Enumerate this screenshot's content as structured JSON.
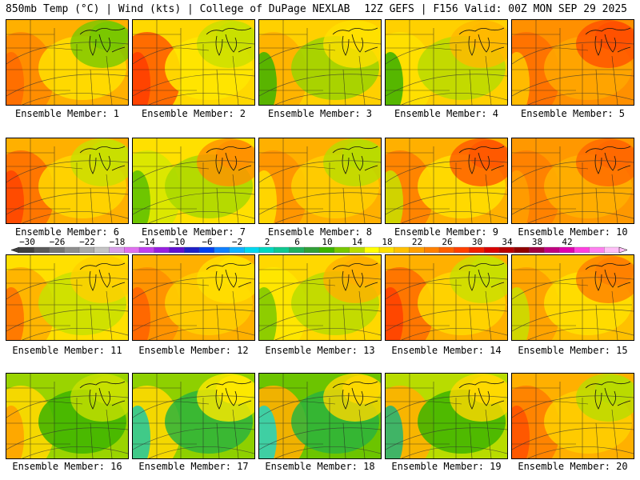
{
  "header": {
    "left_title": "850mb Temp (°C) | Wind (kts) | College of DuPage NEXLAB",
    "right_title": "12Z GEFS | F156 Valid: 00Z MON SEP 29 2025"
  },
  "members": [
    {
      "label": "Ensemble Member: 1",
      "palette": [
        "#ffb000",
        "#ff8a00",
        "#ffe000",
        "#ff6a00",
        "#78c800"
      ]
    },
    {
      "label": "Ensemble Member: 2",
      "palette": [
        "#ffd800",
        "#ff6000",
        "#ffe800",
        "#ff3c00",
        "#c8e000"
      ]
    },
    {
      "label": "Ensemble Member: 3",
      "palette": [
        "#ffd000",
        "#ffb000",
        "#9ad400",
        "#3cb400",
        "#ffe000"
      ]
    },
    {
      "label": "Ensemble Member: 4",
      "palette": [
        "#ffd000",
        "#ffe000",
        "#b8dc00",
        "#38b000",
        "#ffb800"
      ]
    },
    {
      "label": "Ensemble Member: 5",
      "palette": [
        "#ff9000",
        "#ff7000",
        "#ffa800",
        "#ffc800",
        "#ff5000"
      ]
    },
    {
      "label": "Ensemble Member: 6",
      "palette": [
        "#ffb000",
        "#ff7000",
        "#ffd800",
        "#ff4400",
        "#c8e000"
      ]
    },
    {
      "label": "Ensemble Member: 7",
      "palette": [
        "#ffe000",
        "#d8e800",
        "#a8d800",
        "#5ac000",
        "#ff9000"
      ]
    },
    {
      "label": "Ensemble Member: 8",
      "palette": [
        "#ffb000",
        "#ff9400",
        "#ffd000",
        "#ffe000",
        "#b8dc00"
      ]
    },
    {
      "label": "Ensemble Member: 9",
      "palette": [
        "#ffb000",
        "#ff8000",
        "#ffe000",
        "#c8e000",
        "#ff5800"
      ]
    },
    {
      "label": "Ensemble Member: 10",
      "palette": [
        "#ff9800",
        "#ff8000",
        "#ffb000",
        "#ffa000",
        "#ff6800"
      ]
    },
    {
      "label": "Ensemble Member: 11",
      "palette": [
        "#ffe000",
        "#ffb000",
        "#c8e000",
        "#ff7000",
        "#ffd000"
      ]
    },
    {
      "label": "Ensemble Member: 12",
      "palette": [
        "#ffb000",
        "#ff9000",
        "#ffd000",
        "#ff6000",
        "#ffe000"
      ]
    },
    {
      "label": "Ensemble Member: 13",
      "palette": [
        "#ffd800",
        "#ffe800",
        "#b8dc00",
        "#7ac800",
        "#ffb000"
      ]
    },
    {
      "label": "Ensemble Member: 14",
      "palette": [
        "#ffb000",
        "#ff7000",
        "#ffd800",
        "#ff4000",
        "#c8e000"
      ]
    },
    {
      "label": "Ensemble Member: 15",
      "palette": [
        "#ffc000",
        "#ffa000",
        "#ffe000",
        "#c8e000",
        "#ff8000"
      ]
    },
    {
      "label": "Ensemble Member: 16",
      "palette": [
        "#9ad400",
        "#ffd800",
        "#3cb400",
        "#ffa000",
        "#c8e000"
      ]
    },
    {
      "label": "Ensemble Member: 17",
      "palette": [
        "#8ed000",
        "#ffd800",
        "#2cb43c",
        "#20c8a0",
        "#ffe800"
      ]
    },
    {
      "label": "Ensemble Member: 18",
      "palette": [
        "#6cc400",
        "#ffb000",
        "#2cb43c",
        "#20d4c0",
        "#ffd800"
      ]
    },
    {
      "label": "Ensemble Member: 19",
      "palette": [
        "#b8dc00",
        "#ffb000",
        "#3cb400",
        "#20b478",
        "#ffd800"
      ]
    },
    {
      "label": "Ensemble Member: 20",
      "palette": [
        "#ffb000",
        "#ff8000",
        "#ffd000",
        "#ff5000",
        "#b8dc00"
      ]
    }
  ],
  "colorbar": {
    "labels": [
      "-30",
      "-26",
      "-22",
      "-18",
      "-14",
      "-10",
      "-6",
      "-2",
      "2",
      "6",
      "10",
      "14",
      "18",
      "22",
      "26",
      "30",
      "34",
      "38",
      "42"
    ],
    "colors": [
      "#404040",
      "#5a5a5a",
      "#747474",
      "#8e8e8e",
      "#a8a8a8",
      "#c4c4c4",
      "#d8a0e8",
      "#e070f0",
      "#c040f0",
      "#9820e0",
      "#6010d0",
      "#2020c8",
      "#0040f0",
      "#1080ff",
      "#10b0ff",
      "#00d8f0",
      "#00d8c0",
      "#10c890",
      "#20b060",
      "#30a038",
      "#3cb400",
      "#78c800",
      "#b8dc00",
      "#ffff00",
      "#ffe000",
      "#ffc000",
      "#ffa000",
      "#ff8000",
      "#ff6000",
      "#ff4000",
      "#f02000",
      "#d80000",
      "#b80000",
      "#900000",
      "#a00040",
      "#c00080",
      "#e000b0",
      "#ff40e0",
      "#ff80f0",
      "#ffc0f8"
    ]
  }
}
